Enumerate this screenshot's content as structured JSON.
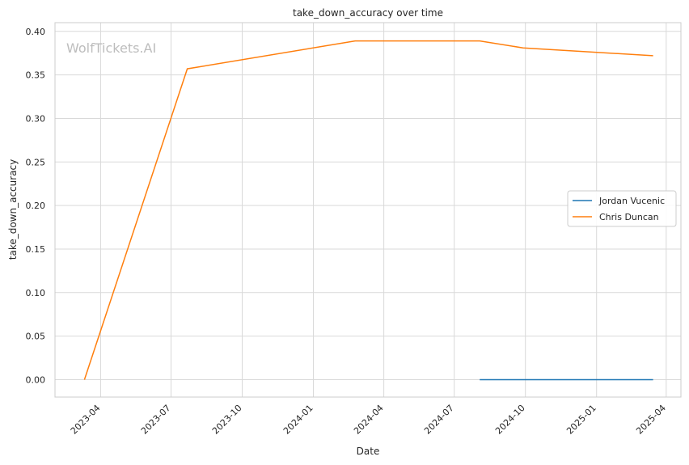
{
  "chart_data": {
    "type": "line",
    "title": "take_down_accuracy over time",
    "xlabel": "Date",
    "ylabel": "take_down_accuracy",
    "watermark": "WolfTickets.AI",
    "x_ticks": [
      "2023-04",
      "2023-07",
      "2023-10",
      "2024-01",
      "2024-04",
      "2024-07",
      "2024-10",
      "2025-01",
      "2025-04"
    ],
    "y_ticks": [
      "0.00",
      "0.05",
      "0.10",
      "0.15",
      "0.20",
      "0.25",
      "0.30",
      "0.35",
      "0.40"
    ],
    "ylim": [
      -0.02,
      0.41
    ],
    "xlim": [
      "2023-02-01",
      "2025-04-20"
    ],
    "grid": true,
    "legend_position": "center-right",
    "series": [
      {
        "name": "Jordan Vucenic",
        "color": "#1f77b4",
        "points": [
          {
            "x": "2024-08-03",
            "y": 0.0
          },
          {
            "x": "2025-03-15",
            "y": 0.0
          }
        ]
      },
      {
        "name": "Chris Duncan",
        "color": "#ff7f0e",
        "points": [
          {
            "x": "2023-03-11",
            "y": 0.0
          },
          {
            "x": "2023-07-22",
            "y": 0.357
          },
          {
            "x": "2024-02-24",
            "y": 0.389
          },
          {
            "x": "2024-08-03",
            "y": 0.389
          },
          {
            "x": "2024-09-28",
            "y": 0.381
          },
          {
            "x": "2025-03-15",
            "y": 0.372
          }
        ]
      }
    ]
  }
}
